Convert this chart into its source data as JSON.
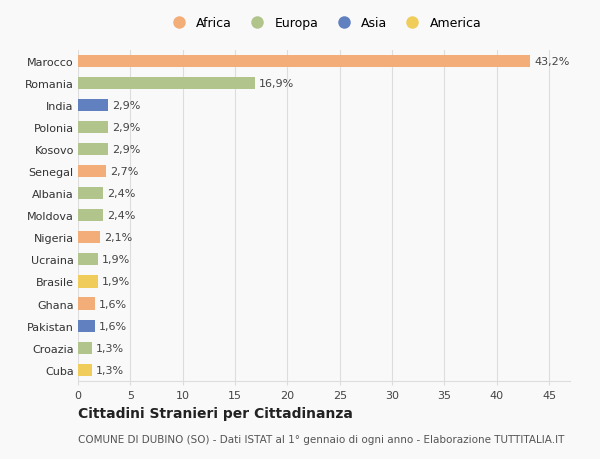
{
  "countries": [
    "Marocco",
    "Romania",
    "India",
    "Polonia",
    "Kosovo",
    "Senegal",
    "Albania",
    "Moldova",
    "Nigeria",
    "Ucraina",
    "Brasile",
    "Ghana",
    "Pakistan",
    "Croazia",
    "Cuba"
  ],
  "values": [
    43.2,
    16.9,
    2.9,
    2.9,
    2.9,
    2.7,
    2.4,
    2.4,
    2.1,
    1.9,
    1.9,
    1.6,
    1.6,
    1.3,
    1.3
  ],
  "labels": [
    "43,2%",
    "16,9%",
    "2,9%",
    "2,9%",
    "2,9%",
    "2,7%",
    "2,4%",
    "2,4%",
    "2,1%",
    "1,9%",
    "1,9%",
    "1,6%",
    "1,6%",
    "1,3%",
    "1,3%"
  ],
  "continents": [
    "Africa",
    "Europa",
    "Asia",
    "Europa",
    "Europa",
    "Africa",
    "Europa",
    "Europa",
    "Africa",
    "Europa",
    "America",
    "Africa",
    "Asia",
    "Europa",
    "America"
  ],
  "colors": {
    "Africa": "#F2AD78",
    "Europa": "#B0C48C",
    "Asia": "#6080C0",
    "America": "#F0CC5A"
  },
  "title": "Cittadini Stranieri per Cittadinanza",
  "subtitle": "COMUNE DI DUBINO (SO) - Dati ISTAT al 1° gennaio di ogni anno - Elaborazione TUTTITALIA.IT",
  "xlim": [
    0,
    47
  ],
  "xticks": [
    0,
    5,
    10,
    15,
    20,
    25,
    30,
    35,
    40,
    45
  ],
  "background_color": "#f9f9f9",
  "grid_color": "#dddddd",
  "bar_height": 0.55,
  "label_fontsize": 8,
  "tick_fontsize": 8,
  "title_fontsize": 10,
  "subtitle_fontsize": 7.5
}
